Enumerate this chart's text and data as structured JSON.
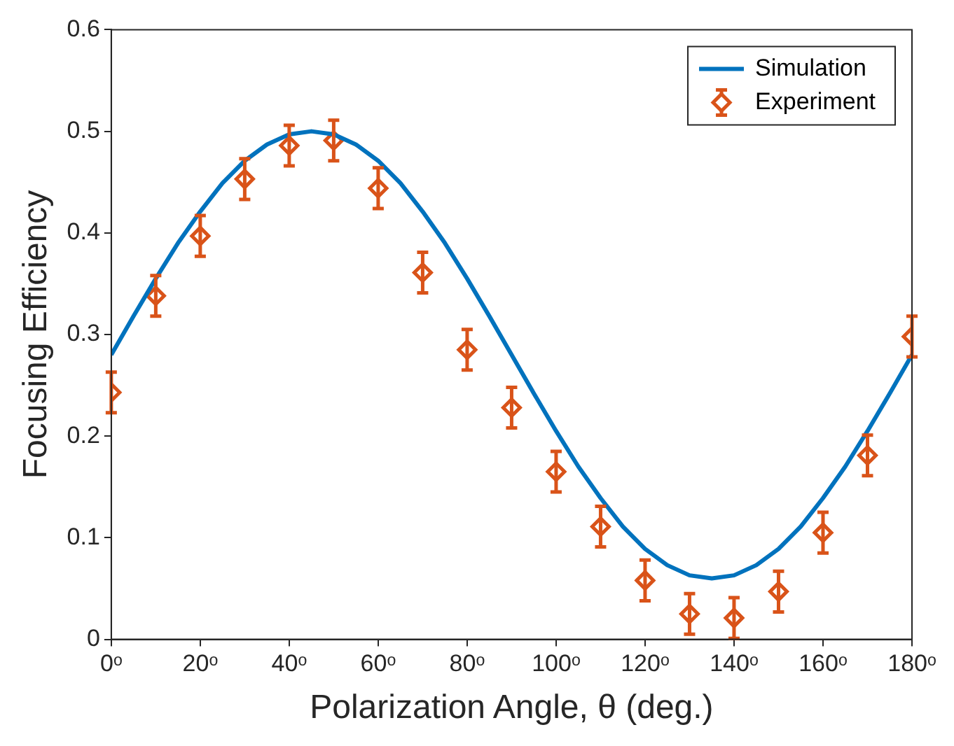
{
  "chart_data": {
    "type": "scatter",
    "xlabel": "Polarization Angle, θ (deg.)",
    "ylabel": "Focusing Efficiency",
    "xlim": [
      0,
      180
    ],
    "xticks": [
      {
        "value": 0,
        "label": "0ᵒ"
      },
      {
        "value": 20,
        "label": "20ᵒ"
      },
      {
        "value": 40,
        "label": "40ᵒ"
      },
      {
        "value": 60,
        "label": "60ᵒ"
      },
      {
        "value": 80,
        "label": "80ᵒ"
      },
      {
        "value": 100,
        "label": "100ᵒ"
      },
      {
        "value": 120,
        "label": "120ᵒ"
      },
      {
        "value": 140,
        "label": "140ᵒ"
      },
      {
        "value": 160,
        "label": "160ᵒ"
      },
      {
        "value": 180,
        "label": "180ᵒ"
      }
    ],
    "ylim": [
      0,
      0.6
    ],
    "yticks": [
      0,
      0.1,
      0.2,
      0.3,
      0.4,
      0.5,
      0.6
    ],
    "grid": false,
    "legend": "top right",
    "series": [
      {
        "name": "Simulation",
        "type": "line",
        "color": "#0072bd",
        "marker": "none",
        "line_style": "solid",
        "x": [
          0,
          5,
          10,
          15,
          20,
          25,
          30,
          35,
          40,
          45,
          50,
          55,
          60,
          65,
          70,
          75,
          80,
          85,
          90,
          95,
          100,
          105,
          110,
          115,
          120,
          125,
          130,
          135,
          140,
          145,
          150,
          155,
          160,
          165,
          170,
          175,
          180
        ],
        "values": [
          0.28,
          0.318,
          0.355,
          0.39,
          0.421,
          0.449,
          0.471,
          0.487,
          0.497,
          0.5,
          0.497,
          0.487,
          0.471,
          0.449,
          0.421,
          0.39,
          0.355,
          0.318,
          0.28,
          0.242,
          0.205,
          0.17,
          0.139,
          0.111,
          0.089,
          0.073,
          0.063,
          0.06,
          0.063,
          0.073,
          0.089,
          0.111,
          0.139,
          0.17,
          0.205,
          0.242,
          0.28
        ]
      },
      {
        "name": "Experiment",
        "color": "#d95319",
        "marker": "diamond",
        "x": [
          0,
          10,
          20,
          30,
          40,
          50,
          60,
          70,
          80,
          90,
          100,
          110,
          120,
          130,
          140,
          150,
          160,
          170,
          180
        ],
        "values": [
          0.243,
          0.338,
          0.397,
          0.453,
          0.486,
          0.491,
          0.444,
          0.361,
          0.285,
          0.228,
          0.165,
          0.111,
          0.058,
          0.025,
          0.021,
          0.047,
          0.105,
          0.181,
          0.298
        ],
        "errors": [
          0.02,
          0.02,
          0.02,
          0.02,
          0.02,
          0.02,
          0.02,
          0.02,
          0.02,
          0.02,
          0.02,
          0.02,
          0.02,
          0.02,
          0.02,
          0.02,
          0.02,
          0.02,
          0.02
        ]
      }
    ]
  }
}
